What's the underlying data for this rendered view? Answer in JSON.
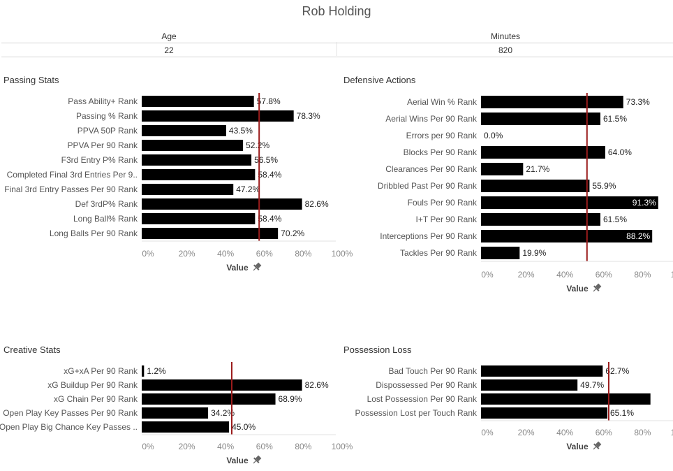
{
  "header": {
    "title": "Rob Holding",
    "columns": [
      {
        "label": "Age",
        "value": "22"
      },
      {
        "label": "Minutes",
        "value": "820"
      }
    ]
  },
  "axis": {
    "ticks": [
      0,
      20,
      40,
      60,
      80,
      100
    ],
    "tick_labels": [
      "0%",
      "20%",
      "40%",
      "60%",
      "80%",
      "100%"
    ],
    "xlabel": "Value",
    "pin_icon": "pin-icon"
  },
  "colors": {
    "bar": "#000000",
    "reference_line": "#9b1c1c",
    "text": "#333333",
    "axis": "#999999"
  },
  "chart_data": [
    {
      "id": "passing",
      "type": "bar",
      "title": "Passing Stats",
      "xlabel": "Value",
      "xlim": [
        0,
        100
      ],
      "reference_line": 60.5,
      "categories": [
        "Pass Ability+ Rank",
        "Passing % Rank",
        "PPVA 50P Rank",
        "PPVA Per 90 Rank",
        "F3rd Entry P% Rank",
        "Completed Final 3rd Entries Per 9..",
        "Final 3rd Entry Passes Per 90 Rank",
        "Def 3rdP% Rank",
        "Long Ball% Rank",
        "Long Balls Per 90  Rank"
      ],
      "values": [
        57.8,
        78.3,
        43.5,
        52.2,
        56.5,
        58.4,
        47.2,
        82.6,
        58.4,
        70.2
      ],
      "labels": [
        "57.8%",
        "78.3%",
        "43.5%",
        "52.2%",
        "56.5%",
        "58.4%",
        "47.2%",
        "82.6%",
        "58.4%",
        "70.2%"
      ]
    },
    {
      "id": "defensive",
      "type": "bar",
      "title": "Defensive Actions",
      "xlabel": "Value",
      "xlim": [
        0,
        100
      ],
      "reference_line": 54.6,
      "categories": [
        "Aerial Win % Rank",
        "Aerial Wins Per 90 Rank",
        "Errors per 90 Rank",
        "Blocks Per 90 Rank",
        "Clearances Per 90 Rank",
        "Dribbled Past Per 90 Rank",
        "Fouls Per 90 Rank",
        "I+T Per 90 Rank",
        "Interceptions Per 90 Rank",
        "Tackles Per 90 Rank"
      ],
      "values": [
        73.3,
        61.5,
        0.0,
        64.0,
        21.7,
        55.9,
        91.3,
        61.5,
        88.2,
        19.9
      ],
      "labels": [
        "73.3%",
        "61.5%",
        "0.0%",
        "64.0%",
        "21.7%",
        "55.9%",
        "91.3%",
        "61.5%",
        "88.2%",
        "19.9%"
      ]
    },
    {
      "id": "creative",
      "type": "bar",
      "title": "Creative Stats",
      "xlabel": "Value",
      "xlim": [
        0,
        100
      ],
      "reference_line": 46.4,
      "categories": [
        "xG+xA Per 90 Rank",
        "xG Buildup Per 90 Rank",
        "xG Chain Per 90 Rank",
        "Open Play Key Passes Per 90 Rank",
        "Open Play Big Chance Key Passes .."
      ],
      "values": [
        1.2,
        82.6,
        68.9,
        34.2,
        45.0
      ],
      "labels": [
        "1.2%",
        "82.6%",
        "68.9%",
        "34.2%",
        "45.0%"
      ]
    },
    {
      "id": "possession",
      "type": "bar",
      "title": "Possession Loss",
      "xlabel": "Value",
      "xlim": [
        0,
        100
      ],
      "reference_line": 65.8,
      "categories": [
        "Bad Touch Per 90 Rank",
        "Dispossessed Per 90 Rank",
        "Lost Possession Per 90 Rank",
        "Possession Lost per Touch Rank"
      ],
      "values": [
        62.7,
        49.7,
        87.3,
        65.1
      ],
      "labels": [
        "62.7%",
        "49.7%",
        "",
        "65.1%"
      ]
    }
  ]
}
